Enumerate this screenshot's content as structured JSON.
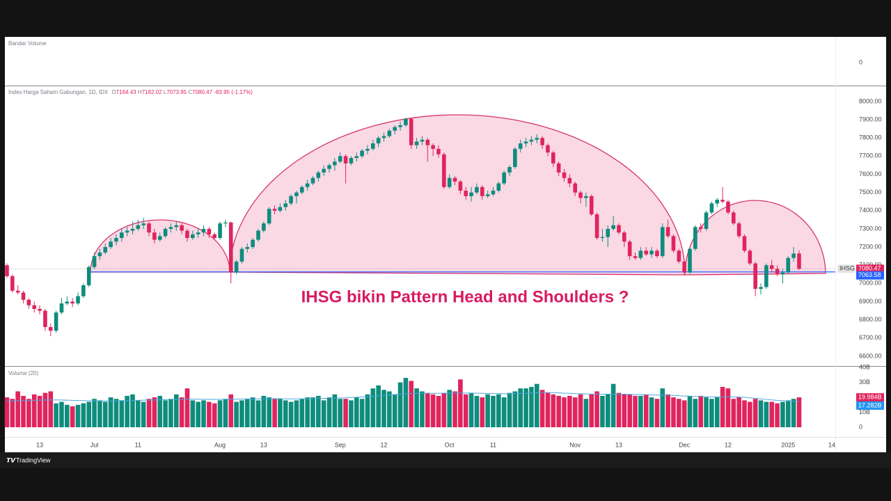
{
  "chart_data": {
    "type": "candlestick",
    "title": "Index Harga Saham Gabungan, 1D, IDX",
    "ohlc_keys": [
      "O",
      "H",
      "L",
      "C"
    ],
    "change": -83.95,
    "change_pct": {
      "value": -1.17,
      "label": "(-1.17%)"
    },
    "annotation": "IHSG bikin Pattern Head and Shoulders ?",
    "symbol": "IHSG",
    "neckline": 7063.58,
    "neckline_color": "#2962ff",
    "up_color": "#0e8c7d",
    "down_color": "#e0245e",
    "grid": false,
    "xlim": [
      -0.38,
      151.63
    ],
    "xticks": [
      {
        "value": 6,
        "label": "13"
      },
      {
        "value": 16,
        "label": "Jul"
      },
      {
        "value": 24,
        "label": "11"
      },
      {
        "value": 39,
        "label": "Aug"
      },
      {
        "value": 47,
        "label": "13"
      },
      {
        "value": 61,
        "label": "Sep"
      },
      {
        "value": 69,
        "label": "12"
      },
      {
        "value": 81,
        "label": "Oct"
      },
      {
        "value": 89,
        "label": "11"
      },
      {
        "value": 104,
        "label": "Nov"
      },
      {
        "value": 112,
        "label": "13"
      },
      {
        "value": 124,
        "label": "Dec"
      },
      {
        "value": 132,
        "label": "12"
      },
      {
        "value": 143,
        "label": "2025"
      },
      {
        "value": 151,
        "label": "14"
      }
    ],
    "ylim": [
      6546,
      8084
    ],
    "yticks": [
      {
        "value": 6600,
        "label": "6600.00"
      },
      {
        "value": 6700,
        "label": "6700.00"
      },
      {
        "value": 6800,
        "label": "6800.00"
      },
      {
        "value": 6900,
        "label": "6900.00"
      },
      {
        "value": 7000,
        "label": "7000.00"
      },
      {
        "value": 7100,
        "label": "7100.00"
      },
      {
        "value": 7200,
        "label": "7200.00"
      },
      {
        "value": 7300,
        "label": "7300.00"
      },
      {
        "value": 7400,
        "label": "7400.00"
      },
      {
        "value": 7500,
        "label": "7500.00"
      },
      {
        "value": 7600,
        "label": "7600.00"
      },
      {
        "value": 7700,
        "label": "7700.00"
      },
      {
        "value": 7800,
        "label": "7800.00"
      },
      {
        "value": 7900,
        "label": "7900.00"
      },
      {
        "value": 8000,
        "label": "8000.00"
      }
    ],
    "candles": [
      [
        7100,
        7110,
        7030,
        7040
      ],
      [
        7040,
        7050,
        6950,
        6960
      ],
      [
        6960,
        6990,
        6940,
        6950
      ],
      [
        6950,
        6960,
        6890,
        6910
      ],
      [
        6910,
        6920,
        6860,
        6880
      ],
      [
        6880,
        6900,
        6840,
        6860
      ],
      [
        6860,
        6880,
        6830,
        6850
      ],
      [
        6850,
        6860,
        6740,
        6760
      ],
      [
        6760,
        6780,
        6710,
        6740
      ],
      [
        6740,
        6850,
        6730,
        6840
      ],
      [
        6840,
        6920,
        6830,
        6890
      ],
      [
        6890,
        6930,
        6880,
        6900
      ],
      [
        6900,
        6920,
        6870,
        6890
      ],
      [
        6890,
        6950,
        6880,
        6930
      ],
      [
        6930,
        7000,
        6920,
        6990
      ],
      [
        6990,
        7100,
        6980,
        7090
      ],
      [
        7090,
        7170,
        7080,
        7150
      ],
      [
        7150,
        7190,
        7130,
        7170
      ],
      [
        7170,
        7220,
        7160,
        7200
      ],
      [
        7200,
        7250,
        7190,
        7230
      ],
      [
        7230,
        7270,
        7210,
        7250
      ],
      [
        7250,
        7300,
        7230,
        7280
      ],
      [
        7280,
        7310,
        7260,
        7290
      ],
      [
        7290,
        7340,
        7270,
        7300
      ],
      [
        7300,
        7350,
        7290,
        7320
      ],
      [
        7320,
        7360,
        7300,
        7330
      ],
      [
        7330,
        7340,
        7260,
        7280
      ],
      [
        7280,
        7300,
        7220,
        7240
      ],
      [
        7240,
        7280,
        7230,
        7260
      ],
      [
        7260,
        7310,
        7250,
        7300
      ],
      [
        7300,
        7330,
        7280,
        7310
      ],
      [
        7310,
        7340,
        7290,
        7320
      ],
      [
        7320,
        7330,
        7270,
        7290
      ],
      [
        7290,
        7300,
        7230,
        7250
      ],
      [
        7250,
        7290,
        7240,
        7270
      ],
      [
        7270,
        7300,
        7250,
        7280
      ],
      [
        7280,
        7320,
        7260,
        7300
      ],
      [
        7300,
        7310,
        7250,
        7270
      ],
      [
        7270,
        7280,
        7240,
        7250
      ],
      [
        7250,
        7340,
        7240,
        7330
      ],
      [
        7330,
        7350,
        7310,
        7335
      ],
      [
        7335,
        7340,
        7000,
        7060
      ],
      [
        7060,
        7130,
        7050,
        7120
      ],
      [
        7120,
        7200,
        7110,
        7190
      ],
      [
        7190,
        7220,
        7170,
        7200
      ],
      [
        7200,
        7250,
        7190,
        7240
      ],
      [
        7240,
        7300,
        7230,
        7290
      ],
      [
        7290,
        7340,
        7280,
        7330
      ],
      [
        7330,
        7420,
        7320,
        7410
      ],
      [
        7410,
        7430,
        7380,
        7400
      ],
      [
        7400,
        7440,
        7390,
        7420
      ],
      [
        7420,
        7460,
        7400,
        7440
      ],
      [
        7440,
        7490,
        7430,
        7480
      ],
      [
        7480,
        7510,
        7440,
        7500
      ],
      [
        7500,
        7540,
        7490,
        7530
      ],
      [
        7530,
        7570,
        7510,
        7550
      ],
      [
        7550,
        7590,
        7540,
        7580
      ],
      [
        7580,
        7620,
        7560,
        7610
      ],
      [
        7610,
        7650,
        7590,
        7630
      ],
      [
        7630,
        7660,
        7610,
        7650
      ],
      [
        7650,
        7690,
        7620,
        7670
      ],
      [
        7670,
        7720,
        7660,
        7700
      ],
      [
        7700,
        7710,
        7550,
        7660
      ],
      [
        7660,
        7700,
        7650,
        7690
      ],
      [
        7690,
        7720,
        7670,
        7700
      ],
      [
        7700,
        7740,
        7690,
        7730
      ],
      [
        7730,
        7760,
        7710,
        7740
      ],
      [
        7740,
        7790,
        7730,
        7770
      ],
      [
        7770,
        7810,
        7750,
        7800
      ],
      [
        7800,
        7830,
        7780,
        7810
      ],
      [
        7810,
        7850,
        7800,
        7840
      ],
      [
        7840,
        7870,
        7820,
        7860
      ],
      [
        7860,
        7890,
        7840,
        7870
      ],
      [
        7870,
        7910,
        7860,
        7905
      ],
      [
        7905,
        7910,
        7740,
        7760
      ],
      [
        7760,
        7800,
        7740,
        7780
      ],
      [
        7780,
        7810,
        7760,
        7790
      ],
      [
        7790,
        7800,
        7670,
        7760
      ],
      [
        7760,
        7770,
        7700,
        7740
      ],
      [
        7740,
        7760,
        7690,
        7710
      ],
      [
        7710,
        7720,
        7520,
        7530
      ],
      [
        7530,
        7600,
        7520,
        7580
      ],
      [
        7580,
        7590,
        7540,
        7560
      ],
      [
        7560,
        7570,
        7490,
        7510
      ],
      [
        7510,
        7530,
        7460,
        7480
      ],
      [
        7480,
        7530,
        7450,
        7500
      ],
      [
        7500,
        7550,
        7490,
        7530
      ],
      [
        7530,
        7540,
        7460,
        7480
      ],
      [
        7480,
        7510,
        7470,
        7490
      ],
      [
        7490,
        7530,
        7480,
        7510
      ],
      [
        7510,
        7560,
        7500,
        7550
      ],
      [
        7550,
        7620,
        7540,
        7610
      ],
      [
        7610,
        7650,
        7590,
        7640
      ],
      [
        7640,
        7750,
        7630,
        7740
      ],
      [
        7740,
        7790,
        7720,
        7770
      ],
      [
        7770,
        7800,
        7750,
        7780
      ],
      [
        7780,
        7810,
        7760,
        7790
      ],
      [
        7790,
        7820,
        7770,
        7800
      ],
      [
        7800,
        7810,
        7740,
        7760
      ],
      [
        7760,
        7770,
        7700,
        7720
      ],
      [
        7720,
        7730,
        7640,
        7660
      ],
      [
        7660,
        7670,
        7590,
        7610
      ],
      [
        7610,
        7630,
        7560,
        7580
      ],
      [
        7580,
        7600,
        7530,
        7550
      ],
      [
        7550,
        7560,
        7480,
        7500
      ],
      [
        7500,
        7510,
        7440,
        7470
      ],
      [
        7470,
        7500,
        7420,
        7480
      ],
      [
        7480,
        7490,
        7370,
        7380
      ],
      [
        7380,
        7390,
        7240,
        7250
      ],
      [
        7250,
        7300,
        7230,
        7255
      ],
      [
        7255,
        7320,
        7200,
        7300
      ],
      [
        7300,
        7370,
        7290,
        7320
      ],
      [
        7320,
        7330,
        7270,
        7280
      ],
      [
        7280,
        7290,
        7200,
        7230
      ],
      [
        7230,
        7240,
        7130,
        7150
      ],
      [
        7150,
        7170,
        7130,
        7140
      ],
      [
        7140,
        7200,
        7130,
        7180
      ],
      [
        7180,
        7200,
        7150,
        7160
      ],
      [
        7160,
        7200,
        7140,
        7180
      ],
      [
        7180,
        7190,
        7140,
        7150
      ],
      [
        7150,
        7330,
        7140,
        7310
      ],
      [
        7310,
        7350,
        7250,
        7260
      ],
      [
        7260,
        7270,
        7170,
        7180
      ],
      [
        7180,
        7190,
        7110,
        7120
      ],
      [
        7120,
        7130,
        7050,
        7060
      ],
      [
        7060,
        7200,
        7050,
        7190
      ],
      [
        7190,
        7320,
        7180,
        7310
      ],
      [
        7310,
        7330,
        7280,
        7300
      ],
      [
        7300,
        7400,
        7290,
        7390
      ],
      [
        7390,
        7450,
        7380,
        7440
      ],
      [
        7440,
        7470,
        7420,
        7460
      ],
      [
        7460,
        7530,
        7440,
        7450
      ],
      [
        7450,
        7460,
        7380,
        7390
      ],
      [
        7390,
        7400,
        7320,
        7330
      ],
      [
        7330,
        7340,
        7250,
        7260
      ],
      [
        7260,
        7270,
        7170,
        7180
      ],
      [
        7180,
        7190,
        7100,
        7110
      ],
      [
        7110,
        7120,
        6930,
        6970
      ],
      [
        6970,
        7000,
        6940,
        6980
      ],
      [
        6980,
        7110,
        6970,
        7100
      ],
      [
        7100,
        7130,
        7060,
        7080
      ],
      [
        7080,
        7100,
        7040,
        7050
      ],
      [
        7050,
        7080,
        7000,
        7060
      ],
      [
        7060,
        7150,
        7050,
        7140
      ],
      [
        7140,
        7200,
        7120,
        7164.43
      ],
      [
        7164.43,
        7182.02,
        7073.95,
        7080.47
      ]
    ],
    "volume": {
      "title": "Volume (20)",
      "ylim": [
        -6.5,
        40.5
      ],
      "yticks": [
        0,
        {
          "value": 10,
          "label": "10B"
        },
        {
          "value": 20,
          "label": "20B"
        },
        {
          "value": 30,
          "label": "30B"
        },
        {
          "value": 40,
          "label": "40B"
        }
      ],
      "values": [
        20,
        19,
        24,
        21,
        19,
        22,
        21,
        23,
        24,
        16,
        17,
        15,
        14,
        15,
        16,
        17,
        19,
        18,
        17,
        20,
        19,
        18,
        21,
        22,
        18,
        17,
        19,
        20,
        21,
        18,
        19,
        22,
        20,
        26,
        18,
        17,
        18,
        17,
        16,
        18,
        19,
        22,
        17,
        18,
        19,
        20,
        18,
        21,
        20,
        19,
        19,
        18,
        17,
        18,
        19,
        20,
        20,
        21,
        18,
        20,
        22,
        19,
        19,
        18,
        20,
        19,
        22,
        26,
        28,
        25,
        24,
        22,
        30,
        33,
        31,
        26,
        24,
        23,
        22,
        21,
        23,
        25,
        24,
        32,
        22,
        23,
        21,
        20,
        22,
        21,
        22,
        20,
        23,
        24,
        26,
        26,
        27,
        29,
        25,
        23,
        22,
        21,
        20,
        21,
        20,
        22,
        19,
        22,
        24,
        21,
        22,
        29,
        23,
        22,
        22,
        21,
        21,
        22,
        20,
        19,
        26,
        22,
        20,
        19,
        18,
        21,
        19,
        21,
        20,
        19,
        20,
        27,
        26,
        19,
        20,
        18,
        17,
        19,
        18,
        17,
        17,
        16,
        17,
        18,
        19,
        19.984
      ],
      "value_label_last": "19.984B",
      "ma": [
        17.5,
        17.6,
        17.7,
        17.8,
        17.9,
        18,
        18.1,
        18.2,
        18.3,
        18.3,
        18.2,
        18.1,
        18,
        17.9,
        17.8,
        17.7,
        17.7,
        17.6,
        17.6,
        17.6,
        17.7,
        17.8,
        17.9,
        18,
        18,
        18.1,
        18.2,
        18.3,
        18.4,
        18.4,
        18.5,
        18.6,
        18.7,
        18.8,
        18.8,
        18.8,
        18.7,
        18.7,
        18.6,
        18.6,
        18.7,
        18.8,
        18.8,
        18.9,
        18.9,
        19,
        19,
        19.1,
        19.1,
        19.1,
        19.1,
        19,
        19,
        19,
        19,
        19.1,
        19.2,
        19.3,
        19.3,
        19.4,
        19.5,
        19.6,
        19.7,
        19.9,
        20.1,
        20.3,
        20.5,
        20.8,
        21,
        21.3,
        21.6,
        21.9,
        22.2,
        22.4,
        22.5,
        22.6,
        22.7,
        22.7,
        22.7,
        22.7,
        22.8,
        22.8,
        22.9,
        22.9,
        22.9,
        22.9,
        22.8,
        22.7,
        22.6,
        22.5,
        22.5,
        22.4,
        22.4,
        22.5,
        22.6,
        22.7,
        22.9,
        23.1,
        23.2,
        23.2,
        23.1,
        23,
        22.8,
        22.7,
        22.5,
        22.4,
        22.3,
        22.2,
        22.2,
        22.1,
        22.1,
        22.2,
        22.2,
        22.1,
        22,
        21.9,
        21.8,
        21.7,
        21.6,
        21.5,
        21.5,
        21.4,
        21.3,
        21.1,
        20.9,
        20.8,
        20.6,
        20.5,
        20.4,
        20.3,
        20.3,
        20.4,
        20.4,
        20.3,
        20.2,
        20,
        19.7,
        19.4,
        19,
        18.6,
        18.3,
        18,
        17.8,
        17.6,
        17.4,
        17.282
      ],
      "ma_label_last": "17.282B",
      "ma_color": "#4aa8d8"
    }
  },
  "bandar_volume": {
    "title": "Bandar Volume",
    "axis_label": 0
  },
  "footer": {
    "brand": "TradingView"
  }
}
